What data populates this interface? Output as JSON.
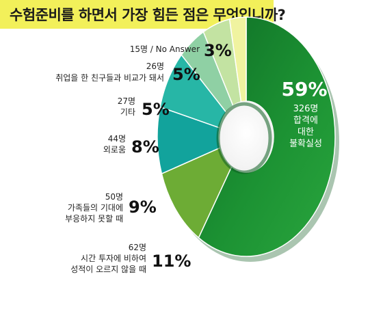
{
  "title": "수험준비를 하면서 가장 힘든 점은 무엇입니까?",
  "colors": {
    "title_bg": "#f2f05a",
    "accent": "#1b8f34"
  },
  "chart_data": {
    "type": "pie",
    "variant": "donut",
    "title": "수험준비를 하면서 가장 힘든 점은 무엇입니까?",
    "slices": [
      {
        "label": "합격에 대한 불확실성",
        "label_lines": [
          "합격에",
          "대한",
          "불확실성"
        ],
        "count": "326명",
        "percent": 59,
        "percent_label": "59%",
        "color": "#1c9233"
      },
      {
        "label": "시간 투자에 비하여 성적이 오르지 않을 때",
        "label_lines": [
          "시간 투자에 비하여",
          "성적이 오르지 않을 때"
        ],
        "count": "62명",
        "percent": 11,
        "percent_label": "11%",
        "color": "#6dac35"
      },
      {
        "label": "가족들의 기대에 부응하지 못할 때",
        "label_lines": [
          "가족들의 기대에",
          "부응하지 못할 때"
        ],
        "count": "50명",
        "percent": 9,
        "percent_label": "9%",
        "color": "#12a39c"
      },
      {
        "label": "외로움",
        "label_lines": [
          "외로움"
        ],
        "count": "44명",
        "percent": 8,
        "percent_label": "8%",
        "color": "#27b6a6"
      },
      {
        "label": "기타",
        "label_lines": [
          "기타"
        ],
        "count": "27명",
        "percent": 5,
        "percent_label": "5%",
        "color": "#8fd0a4"
      },
      {
        "label": "취업을 한 친구들과 비교가 돼서",
        "label_lines": [
          "취업을 한 친구들과 비교가 돼서"
        ],
        "count": "26명",
        "percent": 5,
        "percent_label": "5%",
        "color": "#c3e3a2"
      },
      {
        "label": "No Answer",
        "label_lines": [],
        "count": "15명 / No Answer",
        "percent": 3,
        "percent_label": "3%",
        "color": "#f0f3a0"
      }
    ]
  }
}
